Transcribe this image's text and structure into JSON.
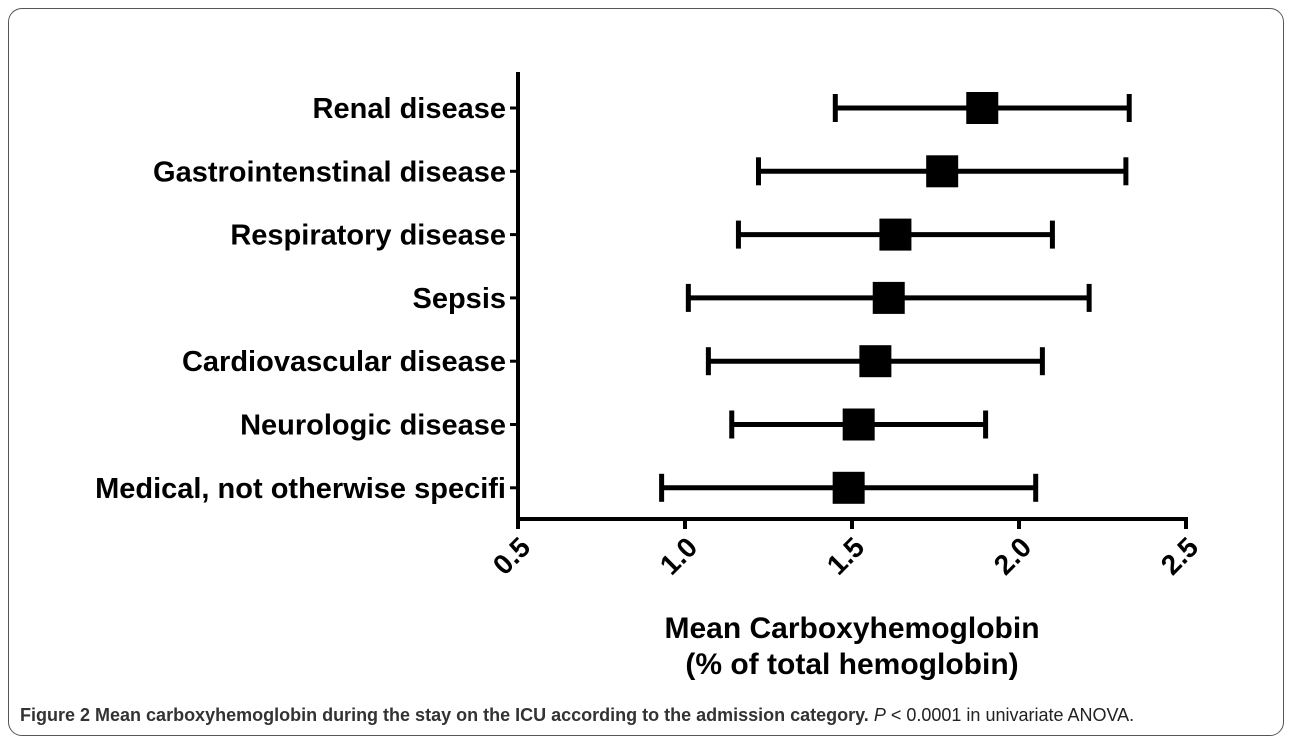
{
  "chart_data": {
    "type": "errorbar",
    "categories": [
      "Renal disease",
      "Gastrointenstinal disease",
      "Respiratory disease",
      "Sepsis",
      "Cardiovascular disease",
      "Neurologic disease",
      "Medical, not otherwise specifi"
    ],
    "values": [
      1.89,
      1.77,
      1.63,
      1.61,
      1.57,
      1.52,
      1.49
    ],
    "errors": [
      0.44,
      0.55,
      0.47,
      0.6,
      0.5,
      0.38,
      0.56
    ],
    "color": "#000000",
    "xlabel": [
      "Mean Carboxyhemoglobin",
      "(% of total hemoglobin)"
    ],
    "xlim": [
      0.5,
      2.5
    ],
    "xticks": [
      {
        "value": 0.5,
        "label": "0.5"
      },
      {
        "value": 1.0,
        "label": "1.0"
      },
      1.5,
      {
        "value": 2.0,
        "label": "2.0"
      },
      2.5
    ]
  },
  "caption": {
    "label": "Figure 2",
    "title": "Mean carboxyhemoglobin during the stay on the ICU according to the admission category.",
    "p": "P",
    "text": "< 0.0001 in univariate ANOVA."
  }
}
